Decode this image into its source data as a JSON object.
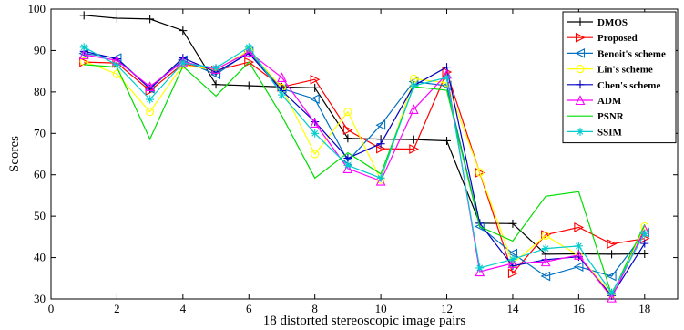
{
  "chart_data": {
    "type": "line",
    "title": "",
    "xlabel": "18 distorted stereoscopic image pairs",
    "ylabel": "Scores",
    "xlim": [
      0,
      19
    ],
    "ylim": [
      30,
      100
    ],
    "xticks": [
      0,
      2,
      4,
      6,
      8,
      10,
      12,
      14,
      16,
      18
    ],
    "yticks": [
      30,
      40,
      50,
      60,
      70,
      80,
      90,
      100
    ],
    "grid": false,
    "legend_position": "top-right",
    "x": [
      1,
      2,
      3,
      4,
      5,
      6,
      7,
      8,
      9,
      10,
      11,
      12,
      13,
      14,
      15,
      16,
      17,
      18
    ],
    "series": [
      {
        "name": "DMOS",
        "color": "#000000",
        "marker": "plus",
        "values": [
          98.5,
          97.8,
          97.6,
          94.8,
          81.8,
          81.5,
          81.2,
          81.0,
          68.8,
          68.6,
          68.5,
          68.2,
          48.3,
          48.2,
          40.8,
          40.9,
          40.8,
          40.9
        ]
      },
      {
        "name": "Proposed",
        "color": "#ff0000",
        "marker": "triangle-right",
        "values": [
          87.2,
          87.0,
          80.3,
          86.8,
          85.2,
          87.2,
          81.2,
          83.0,
          70.8,
          66.3,
          66.2,
          84.8,
          60.5,
          36.2,
          45.5,
          47.3,
          43.3,
          44.6
        ]
      },
      {
        "name": "Benoit's scheme",
        "color": "#0070c0",
        "marker": "triangle-left",
        "values": [
          89.3,
          88.2,
          80.8,
          87.7,
          84.2,
          89.7,
          80.8,
          78.3,
          63.3,
          72.0,
          82.5,
          81.5,
          47.5,
          41.0,
          35.5,
          37.8,
          35.5,
          46.0
        ]
      },
      {
        "name": "Lin's scheme",
        "color": "#ffff00",
        "marker": "circle",
        "values": [
          87.4,
          84.3,
          75.2,
          86.5,
          85.3,
          90.0,
          81.0,
          65.0,
          75.2,
          58.8,
          83.2,
          82.2,
          60.6,
          38.6,
          45.3,
          40.5,
          31.2,
          47.5
        ]
      },
      {
        "name": "Chen's scheme",
        "color": "#0000c0",
        "marker": "plus",
        "values": [
          89.8,
          88.0,
          80.8,
          88.2,
          84.8,
          89.3,
          80.3,
          72.8,
          64.0,
          67.5,
          81.5,
          86.0,
          48.3,
          38.0,
          39.5,
          40.2,
          30.8,
          43.4
        ]
      },
      {
        "name": "ADM",
        "color": "#ff00ff",
        "marker": "triangle-up",
        "values": [
          89.0,
          87.6,
          81.3,
          87.3,
          85.5,
          89.6,
          83.5,
          72.5,
          61.5,
          58.5,
          75.8,
          84.3,
          36.6,
          38.6,
          39.0,
          40.6,
          30.3,
          46.8
        ]
      },
      {
        "name": "PSNR",
        "color": "#00dd00",
        "marker": "none",
        "values": [
          86.6,
          86.0,
          68.6,
          86.2,
          79.0,
          87.2,
          74.2,
          59.2,
          65.3,
          60.2,
          81.3,
          80.4,
          47.5,
          44.0,
          54.8,
          55.9,
          31.0,
          48.0
        ]
      },
      {
        "name": "SSIM",
        "color": "#00cccc",
        "marker": "asterisk",
        "values": [
          90.8,
          86.5,
          78.2,
          87.0,
          85.8,
          90.8,
          79.3,
          70.0,
          62.3,
          59.2,
          81.5,
          83.5,
          37.5,
          39.6,
          42.2,
          42.8,
          31.5,
          45.8
        ]
      }
    ]
  }
}
